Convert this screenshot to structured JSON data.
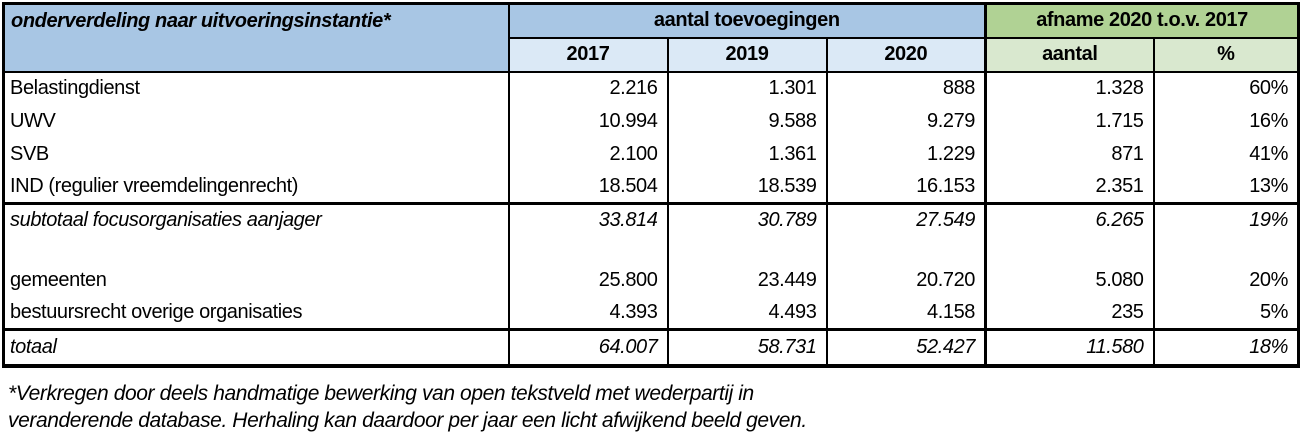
{
  "chart_data": {
    "type": "table",
    "title": "onderverdeling naar uitvoeringsinstantie*",
    "group_headers": {
      "blue": "aantal toevoegingen",
      "green": "afname 2020 t.o.v. 2017"
    },
    "col_headers": [
      "2017",
      "2019",
      "2020",
      "aantal",
      "%"
    ],
    "rows": [
      {
        "label": "Belastingdienst",
        "style": "normal",
        "values": [
          "2.216",
          "1.301",
          "888",
          "1.328",
          "60%"
        ]
      },
      {
        "label": "UWV",
        "style": "normal",
        "values": [
          "10.994",
          "9.588",
          "9.279",
          "1.715",
          "16%"
        ]
      },
      {
        "label": "SVB",
        "style": "normal",
        "values": [
          "2.100",
          "1.361",
          "1.229",
          "871",
          "41%"
        ]
      },
      {
        "label": "IND (regulier vreemdelingenrecht)",
        "style": "normal",
        "values": [
          "18.504",
          "18.539",
          "16.153",
          "2.351",
          "13%"
        ]
      },
      {
        "label": "subtotaal focusorganisaties aanjager",
        "style": "subtotal",
        "values": [
          "33.814",
          "30.789",
          "27.549",
          "6.265",
          "19%"
        ]
      },
      {
        "label": "",
        "style": "empty",
        "values": [
          "",
          "",
          "",
          "",
          ""
        ]
      },
      {
        "label": "gemeenten",
        "style": "normal",
        "values": [
          "25.800",
          "23.449",
          "20.720",
          "5.080",
          "20%"
        ]
      },
      {
        "label": "bestuursrecht overige organisaties",
        "style": "normal",
        "values": [
          "4.393",
          "4.493",
          "4.158",
          "235",
          "5%"
        ]
      },
      {
        "label": "totaal",
        "style": "total",
        "values": [
          "64.007",
          "58.731",
          "52.427",
          "11.580",
          "18%"
        ]
      }
    ]
  },
  "footnote": {
    "line1": "*Verkregen door deels handmatige bewerking van open tekstveld met wederpartij in",
    "line2": "veranderende database. Herhaling kan daardoor per jaar een licht afwijkend beeld geven."
  },
  "colors": {
    "header_blue": "#a8c6e4",
    "subheader_blue": "#dbe9f6",
    "header_green": "#b0d294",
    "subheader_green": "#d9e8cf",
    "border": "#000000",
    "background": "#ffffff"
  }
}
